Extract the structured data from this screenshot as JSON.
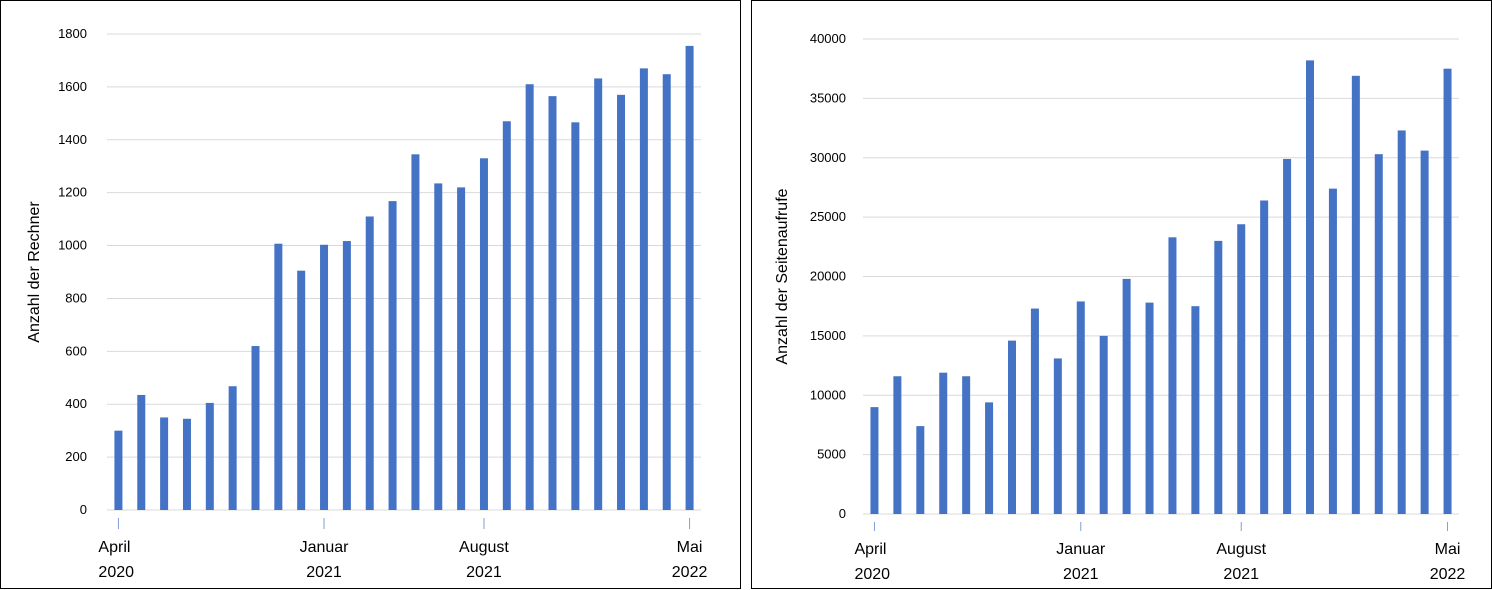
{
  "chart_data": [
    {
      "type": "bar",
      "title": "",
      "ylabel": "Anzahl der Rechner",
      "xlabel": "",
      "ylim": [
        0,
        1800
      ],
      "yticks": [
        "0",
        "200",
        "400",
        "600",
        "800",
        "1000",
        "1200",
        "1400",
        "1600",
        "1800"
      ],
      "xtick_labels": [
        {
          "index": 0,
          "month": "April",
          "year": "2020"
        },
        {
          "index": 9,
          "month": "Januar",
          "year": "2021"
        },
        {
          "index": 16,
          "month": "August",
          "year": "2021"
        },
        {
          "index": 25,
          "month": "Mai",
          "year": "2022"
        }
      ],
      "grid": true,
      "color": "#4472C4",
      "values": [
        300,
        435,
        350,
        345,
        405,
        468,
        620,
        1007,
        905,
        1003,
        1017,
        1110,
        1168,
        1345,
        1235,
        1220,
        1330,
        1470,
        1610,
        1565,
        1466,
        1632,
        1570,
        1670,
        1648,
        1755
      ]
    },
    {
      "type": "bar",
      "title": "",
      "ylabel": "Anzahl der Seitenaufrufe",
      "xlabel": "",
      "ylim": [
        0,
        40000
      ],
      "yticks": [
        "0",
        "5000",
        "10000",
        "15000",
        "20000",
        "25000",
        "30000",
        "35000",
        "40000"
      ],
      "xtick_labels": [
        {
          "index": 0,
          "month": "April",
          "year": "2020"
        },
        {
          "index": 9,
          "month": "Januar",
          "year": "2021"
        },
        {
          "index": 16,
          "month": "August",
          "year": "2021"
        },
        {
          "index": 25,
          "month": "Mai",
          "year": "2022"
        }
      ],
      "grid": true,
      "color": "#4472C4",
      "values": [
        9000,
        11600,
        7400,
        11900,
        11600,
        9400,
        14600,
        17300,
        13100,
        17900,
        15000,
        19800,
        17800,
        23300,
        17500,
        23000,
        24400,
        26400,
        29900,
        38200,
        27400,
        36900,
        30300,
        32300,
        30600,
        37500
      ]
    }
  ]
}
